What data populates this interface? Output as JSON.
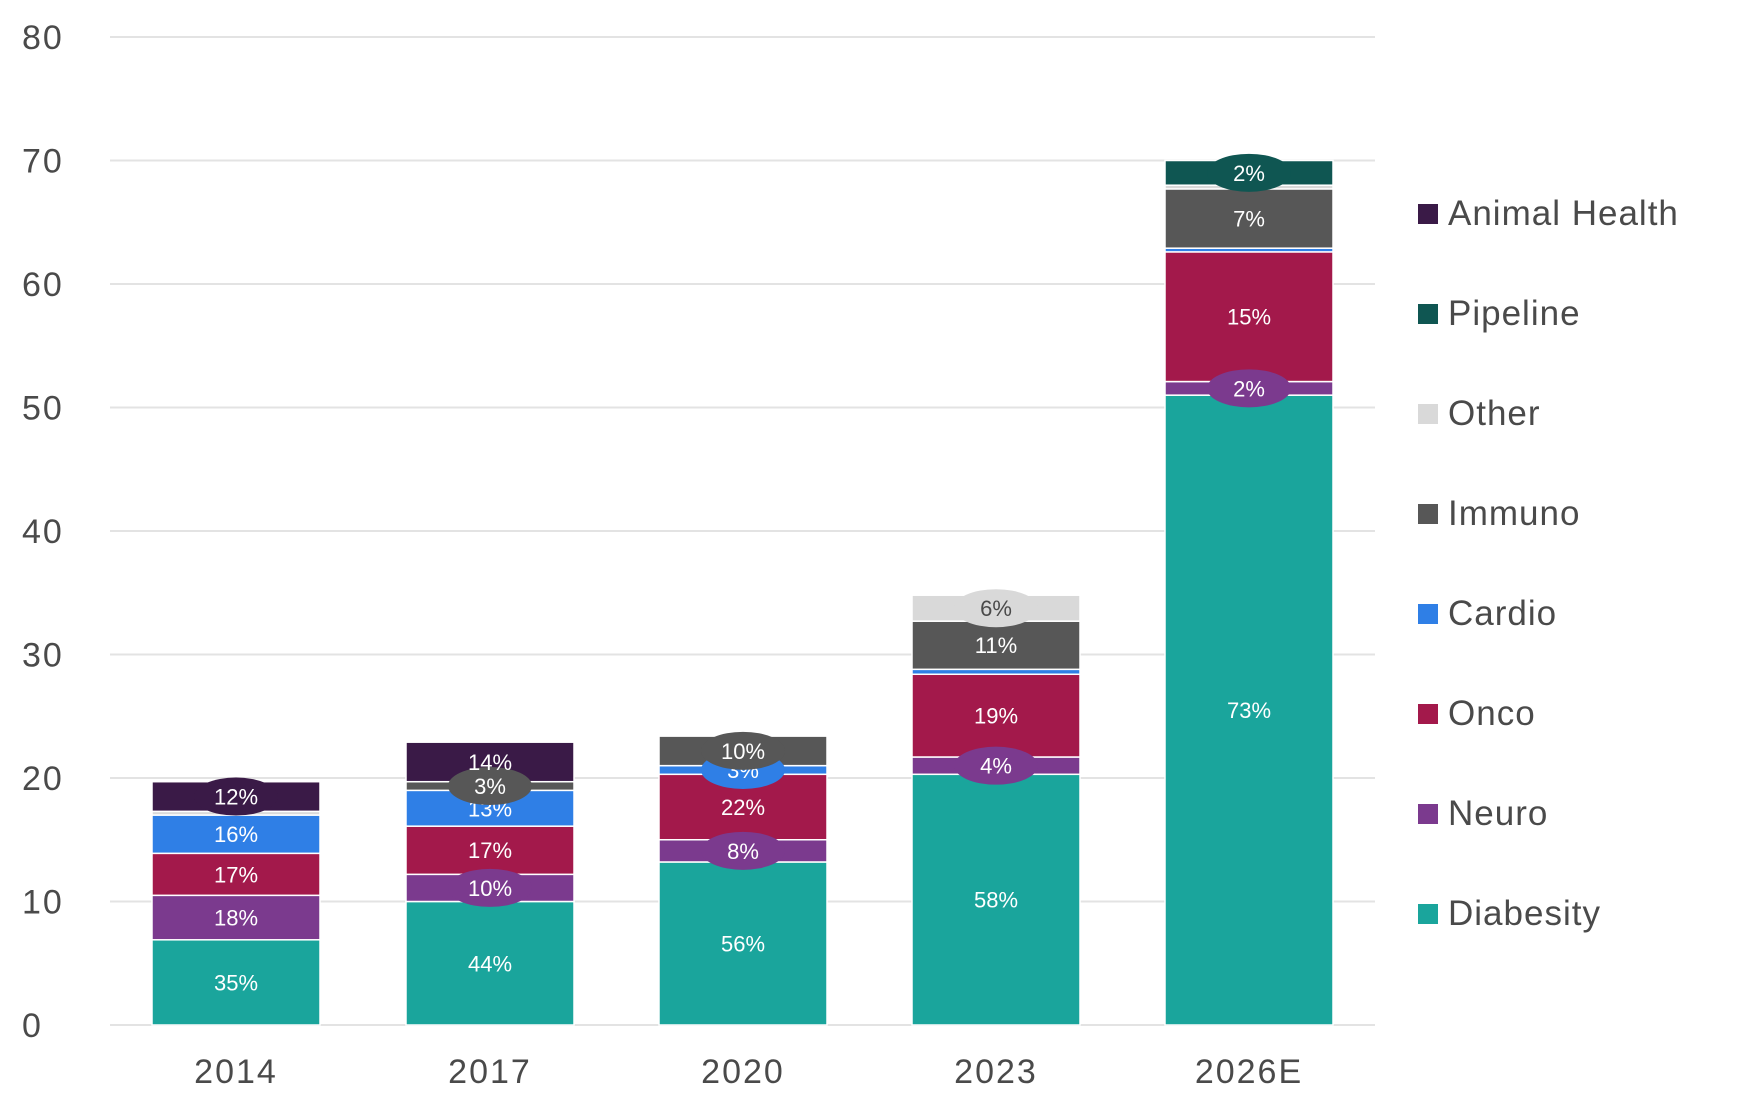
{
  "chart_data": {
    "type": "bar",
    "stacked": true,
    "categories": [
      "2014",
      "2017",
      "2020",
      "2023",
      "2026E"
    ],
    "ylim": [
      0,
      80
    ],
    "yticks": [
      "0",
      "10",
      "20",
      "30",
      "40",
      "50",
      "60",
      "70",
      "80"
    ],
    "grid": true,
    "legend_position": "right",
    "series": [
      {
        "name": "Diabesity",
        "color": "#1aa59c",
        "values": [
          6.9,
          10.0,
          13.2,
          20.3,
          51.0
        ],
        "labels": [
          "35%",
          "44%",
          "56%",
          "58%",
          "73%"
        ]
      },
      {
        "name": "Neuro",
        "color": "#7b3a8e",
        "values": [
          3.6,
          2.2,
          1.8,
          1.4,
          1.1
        ],
        "labels": [
          "18%",
          "10%",
          "8%",
          "4%",
          "2%"
        ]
      },
      {
        "name": "Onco",
        "color": "#a3194b",
        "values": [
          3.4,
          3.9,
          5.3,
          6.7,
          10.5
        ],
        "labels": [
          "17%",
          "17%",
          "22%",
          "19%",
          "15%"
        ]
      },
      {
        "name": "Cardio",
        "color": "#2f7fe6",
        "values": [
          3.1,
          2.9,
          0.7,
          0.4,
          0.3
        ],
        "labels": [
          "16%",
          "13%",
          "3%",
          "",
          ""
        ]
      },
      {
        "name": "Immuno",
        "color": "#575757",
        "values": [
          0.0,
          0.7,
          2.4,
          3.9,
          4.8
        ],
        "labels": [
          "",
          "3%",
          "10%",
          "11%",
          "7%"
        ]
      },
      {
        "name": "Other",
        "color": "#d9d9d9",
        "values": [
          0.3,
          0.0,
          0.1,
          2.1,
          0.3
        ],
        "labels": [
          "",
          "",
          "",
          "6%",
          ""
        ]
      },
      {
        "name": "Pipeline",
        "color": "#0f5652",
        "values": [
          0.0,
          0.0,
          0.0,
          0.0,
          2.0
        ],
        "labels": [
          "",
          "",
          "",
          "",
          "2%"
        ]
      },
      {
        "name": "Animal Health",
        "color": "#3a1a47",
        "values": [
          2.4,
          3.2,
          0.0,
          0.0,
          0.0
        ],
        "labels": [
          "12%",
          "14%",
          "",
          "",
          ""
        ]
      }
    ],
    "legend_order": [
      "Animal Health",
      "Pipeline",
      "Other",
      "Immuno",
      "Cardio",
      "Onco",
      "Neuro",
      "Diabesity"
    ]
  }
}
